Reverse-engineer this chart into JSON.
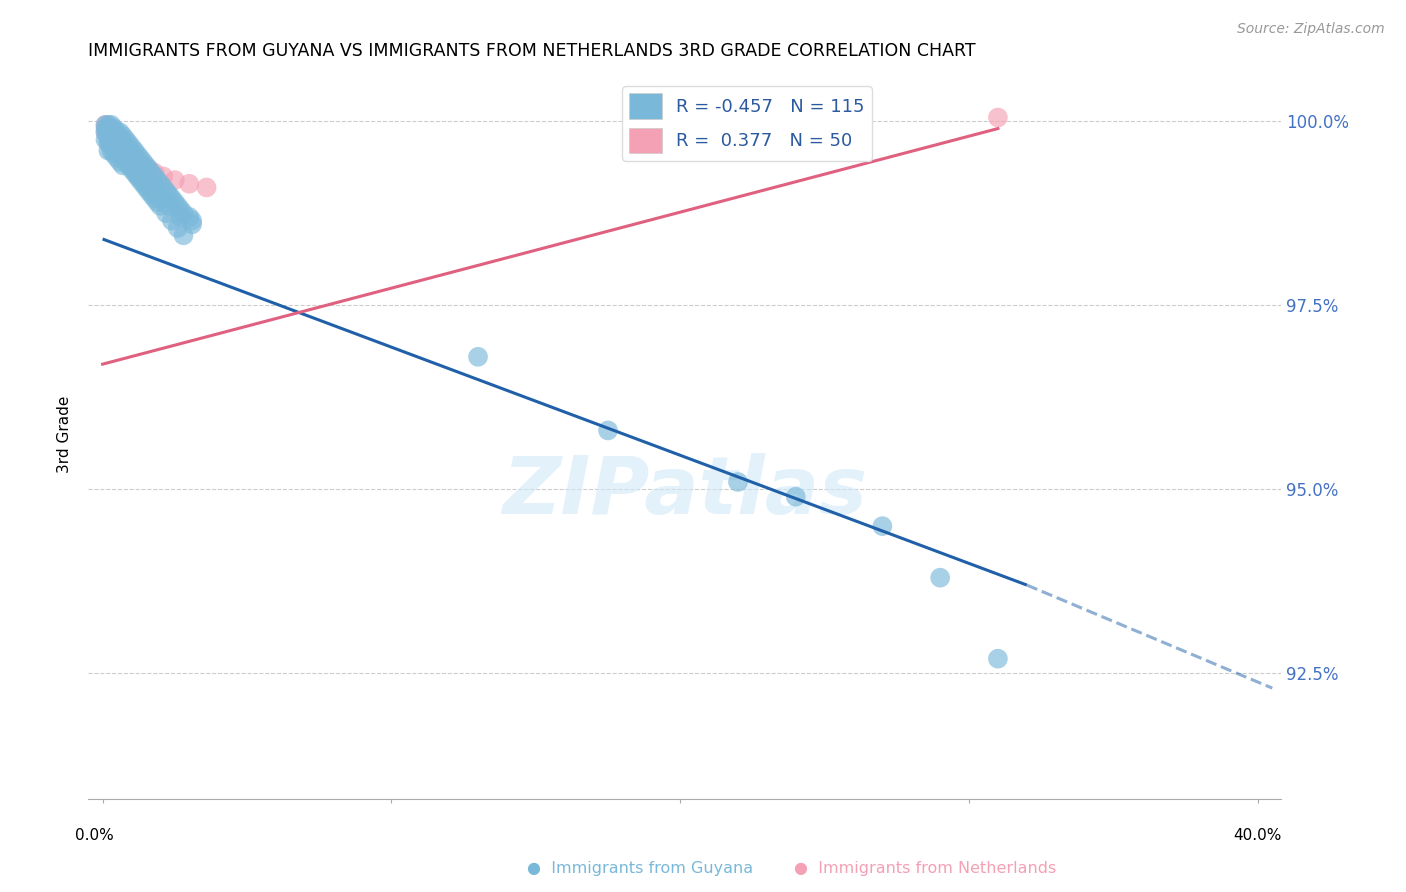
{
  "title": "IMMIGRANTS FROM GUYANA VS IMMIGRANTS FROM NETHERLANDS 3RD GRADE CORRELATION CHART",
  "source": "Source: ZipAtlas.com",
  "ylabel": "3rd Grade",
  "ytick_labels": [
    "100.0%",
    "97.5%",
    "95.0%",
    "92.5%"
  ],
  "ytick_values": [
    1.0,
    0.975,
    0.95,
    0.925
  ],
  "xlim": [
    0.0,
    0.4
  ],
  "ylim": [
    0.908,
    1.007
  ],
  "legend_guyana_R": "-0.457",
  "legend_guyana_N": "115",
  "legend_netherlands_R": "0.377",
  "legend_netherlands_N": "50",
  "guyana_color": "#7ab8d9",
  "netherlands_color": "#f4a0b5",
  "guyana_line_color": "#2060a8",
  "netherlands_line_color": "#e06080",
  "watermark": "ZIPatlas",
  "guyana_line_x0": 0.0,
  "guyana_line_y0": 0.984,
  "guyana_line_x1": 0.32,
  "guyana_line_y1": 0.937,
  "guyana_line_x1_dash": 0.32,
  "guyana_line_y1_dash": 0.937,
  "guyana_line_x2_dash": 0.405,
  "guyana_line_y2_dash": 0.923,
  "netherlands_line_x0": 0.0,
  "netherlands_line_y0": 0.967,
  "netherlands_line_x1": 0.31,
  "netherlands_line_y1": 0.999,
  "guyana_scatter_x": [
    0.001,
    0.001,
    0.002,
    0.002,
    0.002,
    0.003,
    0.003,
    0.003,
    0.004,
    0.004,
    0.004,
    0.005,
    0.005,
    0.005,
    0.006,
    0.006,
    0.006,
    0.007,
    0.007,
    0.007,
    0.008,
    0.008,
    0.009,
    0.009,
    0.01,
    0.01,
    0.011,
    0.011,
    0.012,
    0.012,
    0.013,
    0.013,
    0.014,
    0.015,
    0.015,
    0.016,
    0.017,
    0.018,
    0.019,
    0.02,
    0.021,
    0.022,
    0.023,
    0.024,
    0.025,
    0.026,
    0.027,
    0.028,
    0.03,
    0.031,
    0.001,
    0.002,
    0.002,
    0.003,
    0.003,
    0.004,
    0.004,
    0.005,
    0.005,
    0.006,
    0.006,
    0.007,
    0.007,
    0.008,
    0.009,
    0.01,
    0.011,
    0.012,
    0.013,
    0.014,
    0.015,
    0.016,
    0.017,
    0.018,
    0.019,
    0.02,
    0.022,
    0.024,
    0.026,
    0.028,
    0.001,
    0.002,
    0.003,
    0.004,
    0.005,
    0.006,
    0.007,
    0.008,
    0.009,
    0.01,
    0.011,
    0.013,
    0.015,
    0.017,
    0.02,
    0.023,
    0.027,
    0.031,
    0.002,
    0.003,
    0.004,
    0.005,
    0.006,
    0.008,
    0.01,
    0.012,
    0.015,
    0.13,
    0.175,
    0.22,
    0.24,
    0.27,
    0.29,
    0.31
  ],
  "guyana_scatter_y": [
    0.9995,
    0.9985,
    0.9995,
    0.9985,
    0.9975,
    0.9995,
    0.9985,
    0.9975,
    0.999,
    0.998,
    0.997,
    0.9985,
    0.9975,
    0.9965,
    0.9985,
    0.9975,
    0.9965,
    0.998,
    0.997,
    0.996,
    0.9975,
    0.9965,
    0.997,
    0.996,
    0.9965,
    0.9955,
    0.996,
    0.995,
    0.9955,
    0.9945,
    0.995,
    0.994,
    0.9945,
    0.994,
    0.993,
    0.9935,
    0.993,
    0.9925,
    0.992,
    0.9915,
    0.991,
    0.9905,
    0.99,
    0.9895,
    0.989,
    0.9885,
    0.988,
    0.9875,
    0.987,
    0.9865,
    0.9975,
    0.997,
    0.996,
    0.997,
    0.996,
    0.9965,
    0.9955,
    0.996,
    0.995,
    0.9955,
    0.9945,
    0.995,
    0.994,
    0.9945,
    0.994,
    0.9935,
    0.993,
    0.9925,
    0.992,
    0.9915,
    0.991,
    0.9905,
    0.99,
    0.9895,
    0.989,
    0.9885,
    0.9875,
    0.9865,
    0.9855,
    0.9845,
    0.999,
    0.998,
    0.9975,
    0.997,
    0.9965,
    0.996,
    0.9955,
    0.995,
    0.9945,
    0.994,
    0.9935,
    0.9925,
    0.9915,
    0.9905,
    0.9895,
    0.9885,
    0.987,
    0.986,
    0.9985,
    0.998,
    0.9975,
    0.9965,
    0.996,
    0.995,
    0.994,
    0.993,
    0.9915,
    0.968,
    0.958,
    0.951,
    0.949,
    0.945,
    0.938,
    0.927
  ],
  "netherlands_scatter_x": [
    0.001,
    0.002,
    0.002,
    0.003,
    0.003,
    0.004,
    0.004,
    0.005,
    0.005,
    0.006,
    0.006,
    0.007,
    0.007,
    0.008,
    0.008,
    0.009,
    0.009,
    0.01,
    0.01,
    0.011,
    0.011,
    0.012,
    0.012,
    0.013,
    0.013,
    0.014,
    0.015,
    0.016,
    0.017,
    0.018,
    0.001,
    0.002,
    0.003,
    0.004,
    0.005,
    0.006,
    0.007,
    0.008,
    0.009,
    0.01,
    0.012,
    0.014,
    0.016,
    0.018,
    0.021,
    0.025,
    0.03,
    0.036,
    0.31,
    0.005
  ],
  "netherlands_scatter_y": [
    0.9985,
    0.999,
    0.998,
    0.9985,
    0.9975,
    0.998,
    0.997,
    0.9975,
    0.9965,
    0.997,
    0.996,
    0.9965,
    0.9955,
    0.996,
    0.995,
    0.9955,
    0.9945,
    0.995,
    0.994,
    0.9945,
    0.9935,
    0.994,
    0.993,
    0.9935,
    0.9925,
    0.993,
    0.9925,
    0.992,
    0.9915,
    0.991,
    0.9995,
    0.999,
    0.9985,
    0.998,
    0.9975,
    0.997,
    0.9965,
    0.996,
    0.9955,
    0.995,
    0.9945,
    0.994,
    0.9935,
    0.993,
    0.9925,
    0.992,
    0.9915,
    0.991,
    1.0005,
    0.997
  ]
}
